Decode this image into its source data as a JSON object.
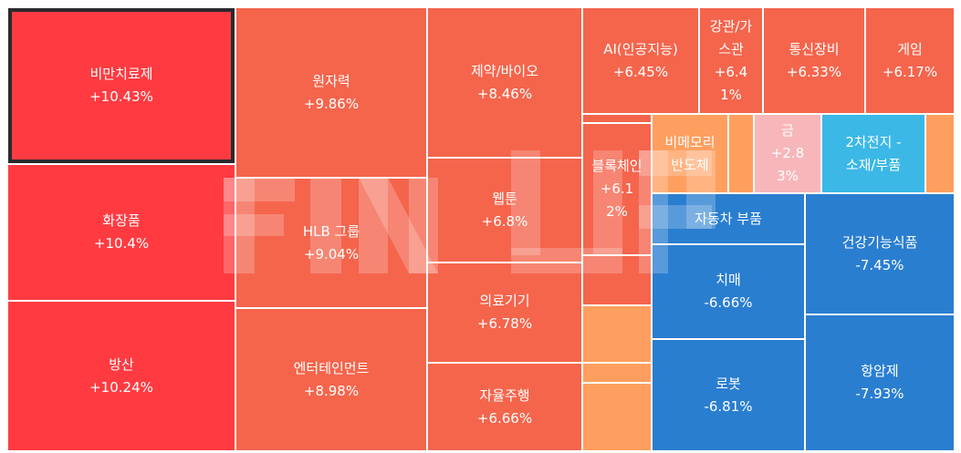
{
  "chart_data": {
    "type": "treemap",
    "selected": "비만치료제",
    "colors": {
      "strong_up": "#ff3b41",
      "up": "#f4654c",
      "mild_up": "#ff9f5f",
      "weak_up": "#f7b7ba",
      "weak_down": "#3bb8e6",
      "down": "#2a7ed0"
    },
    "tiles": [
      {
        "label": "비만치료제",
        "change": "+10.43%",
        "value": 10.43,
        "color": "strong_up"
      },
      {
        "label": "화장품",
        "change": "+10.4%",
        "value": 10.4,
        "color": "strong_up"
      },
      {
        "label": "방산",
        "change": "+10.24%",
        "value": 10.24,
        "color": "strong_up"
      },
      {
        "label": "원자력",
        "change": "+9.86%",
        "value": 9.86,
        "color": "up"
      },
      {
        "label": "HLB 그룹",
        "change": "+9.04%",
        "value": 9.04,
        "color": "up"
      },
      {
        "label": "엔터테인먼트",
        "change": "+8.98%",
        "value": 8.98,
        "color": "up"
      },
      {
        "label": "제약/바이오",
        "change": "+8.46%",
        "value": 8.46,
        "color": "up"
      },
      {
        "label": "웹툰",
        "change": "+6.8%",
        "value": 6.8,
        "color": "up"
      },
      {
        "label": "의료기기",
        "change": "+6.78%",
        "value": 6.78,
        "color": "up"
      },
      {
        "label": "자율주행",
        "change": "+6.66%",
        "value": 6.66,
        "color": "up"
      },
      {
        "label": "AI(인공지능)",
        "change": "+6.45%",
        "value": 6.45,
        "color": "up"
      },
      {
        "label": "강관/가스관",
        "change": "+6.41%",
        "value": 6.41,
        "color": "up"
      },
      {
        "label": "통신장비",
        "change": "+6.33%",
        "value": 6.33,
        "color": "up"
      },
      {
        "label": "게임",
        "change": "+6.17%",
        "value": 6.17,
        "color": "up"
      },
      {
        "label": "블록체인",
        "change": "+6.12%",
        "value": 6.12,
        "color": "up"
      },
      {
        "label": "비메모리 반도체",
        "change": "",
        "value": null,
        "color": "mild_up"
      },
      {
        "label": "금",
        "change": "+2.83%",
        "value": 2.83,
        "color": "weak_up"
      },
      {
        "label": "2차전지 - 소재/부품",
        "change": "",
        "value": null,
        "color": "weak_down"
      },
      {
        "label": "자동차 부품",
        "change": "",
        "value": null,
        "color": "down"
      },
      {
        "label": "건강기능식품",
        "change": "-7.45%",
        "value": -7.45,
        "color": "down"
      },
      {
        "label": "치매",
        "change": "-6.66%",
        "value": -6.66,
        "color": "down"
      },
      {
        "label": "로봇",
        "change": "-6.81%",
        "value": -6.81,
        "color": "down"
      },
      {
        "label": "항암제",
        "change": "-7.93%",
        "value": -7.93,
        "color": "down"
      }
    ],
    "unlabeled": [
      {
        "color": "up"
      },
      {
        "color": "up"
      },
      {
        "color": "mild_up"
      },
      {
        "color": "mild_up"
      },
      {
        "color": "mild_up"
      },
      {
        "color": "mild_up"
      },
      {
        "color": "mild_up"
      },
      {
        "color": "weak_down"
      }
    ]
  },
  "watermark": {
    "text": "FINUP"
  }
}
